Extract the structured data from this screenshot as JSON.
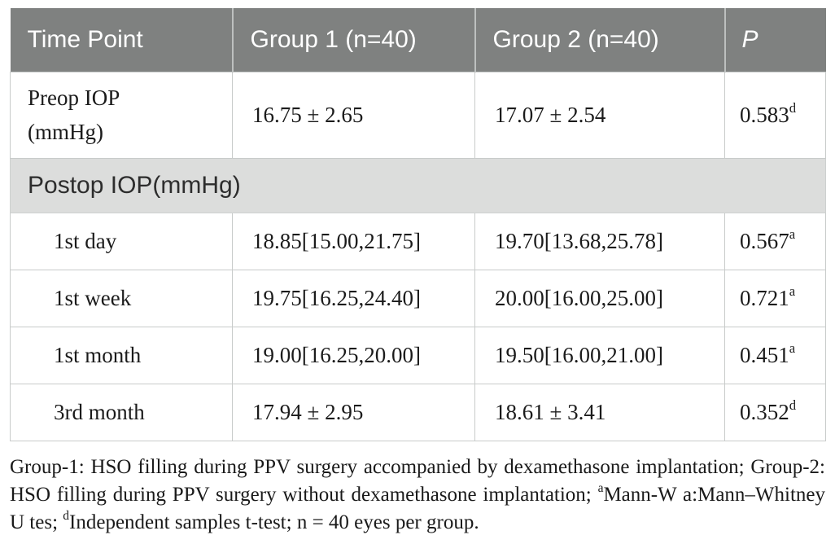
{
  "table": {
    "columns": [
      "Time Point",
      "Group 1 (n=40)",
      "Group 2 (n=40)",
      "P"
    ],
    "section_label": "Postop IOP(mmHg)",
    "rows": [
      {
        "label": "Preop IOP (mmHg)",
        "group1": "16.75 ± 2.65",
        "group2": "17.07 ± 2.54",
        "p_value": "0.583",
        "p_sup": "d"
      },
      {
        "label": "1st day",
        "group1": "18.85[15.00,21.75]",
        "group2": "19.70[13.68,25.78]",
        "p_value": "0.567",
        "p_sup": "a"
      },
      {
        "label": "1st week",
        "group1": "19.75[16.25,24.40]",
        "group2": "20.00[16.00,25.00]",
        "p_value": "0.721",
        "p_sup": "a"
      },
      {
        "label": "1st month",
        "group1": "19.00[16.25,20.00]",
        "group2": "19.50[16.00,21.00]",
        "p_value": "0.451",
        "p_sup": "a"
      },
      {
        "label": "3rd month",
        "group1": "17.94 ± 2.95",
        "group2": "18.61 ± 3.41",
        "p_value": "0.352",
        "p_sup": "d"
      }
    ]
  },
  "footnote": {
    "part1": "Group-1: HSO filling during PPV surgery accompanied by dexamethasone implantation; Group-2: HSO filling during PPV surgery without dexamethasone implantation; ",
    "sup1": "a",
    "part2": "Mann-W a:Mann–Whitney U tes; ",
    "sup2": "d",
    "part3": "Independent samples t-test; n = 40 eyes per group."
  },
  "colors": {
    "header_bg": "#7f8180",
    "header_text": "#ffffff",
    "section_bg": "#dcdddc",
    "border": "#c8cbca"
  },
  "chart_data": {
    "type": "table",
    "title": "IOP by time point and group",
    "columns": [
      "Time Point",
      "Group 1 (n=40)",
      "Group 2 (n=40)",
      "P"
    ],
    "rows": [
      [
        "Preop IOP (mmHg)",
        "16.75 ± 2.65",
        "17.07 ± 2.54",
        "0.583 d"
      ],
      [
        "Postop IOP(mmHg)",
        "",
        "",
        ""
      ],
      [
        "1st day",
        "18.85[15.00,21.75]",
        "19.70[13.68,25.78]",
        "0.567 a"
      ],
      [
        "1st week",
        "19.75[16.25,24.40]",
        "20.00[16.00,25.00]",
        "0.721 a"
      ],
      [
        "1st month",
        "19.00[16.25,20.00]",
        "19.50[16.00,21.00]",
        "0.451 a"
      ],
      [
        "3rd month",
        "17.94 ± 2.95",
        "18.61 ± 3.41",
        "0.352 d"
      ]
    ]
  }
}
